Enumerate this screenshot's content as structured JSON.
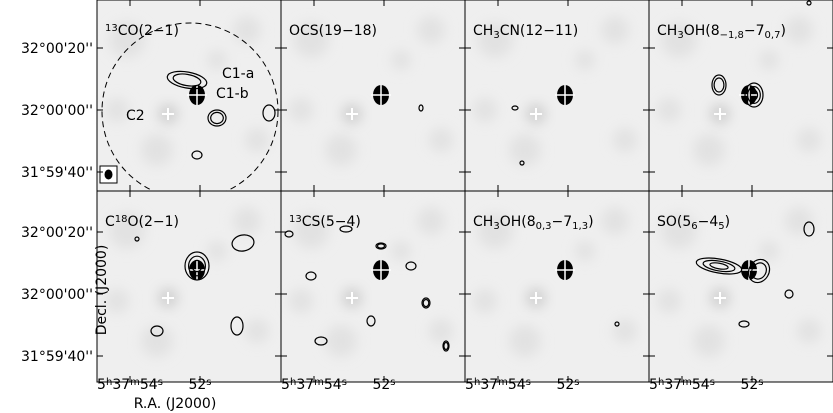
{
  "panels": [
    {
      "label": [
        {
          "t": "13",
          "s": "sup"
        },
        {
          "t": "CO(2−1)"
        }
      ]
    },
    {
      "label": [
        {
          "t": "OCS(19−18)"
        }
      ]
    },
    {
      "label": [
        {
          "t": "CH"
        },
        {
          "t": "3",
          "s": "sub"
        },
        {
          "t": "CN(12−11)"
        }
      ]
    },
    {
      "label": [
        {
          "t": "CH"
        },
        {
          "t": "3",
          "s": "sub"
        },
        {
          "t": "OH(8"
        },
        {
          "t": "−1,8",
          "s": "sub"
        },
        {
          "t": "−7"
        },
        {
          "t": "0,7",
          "s": "sub"
        },
        {
          "t": ")"
        }
      ]
    },
    {
      "label": [
        {
          "t": "C"
        },
        {
          "t": "18",
          "s": "sup"
        },
        {
          "t": "O(2−1)"
        }
      ]
    },
    {
      "label": [
        {
          "t": "13",
          "s": "sup"
        },
        {
          "t": "CS(5−4)"
        }
      ]
    },
    {
      "label": [
        {
          "t": "CH"
        },
        {
          "t": "3",
          "s": "sub"
        },
        {
          "t": "OH(8"
        },
        {
          "t": "0,3",
          "s": "sub"
        },
        {
          "t": "−7"
        },
        {
          "t": "1,3",
          "s": "sub"
        },
        {
          "t": ")"
        }
      ]
    },
    {
      "label": [
        {
          "t": "SO(5"
        },
        {
          "t": "6",
          "s": "sub"
        },
        {
          "t": "−4"
        },
        {
          "t": "5",
          "s": "sub"
        },
        {
          "t": ")"
        }
      ]
    }
  ],
  "annotations": [
    "C1-a",
    "C1-b",
    "C2"
  ],
  "y_tick_labels": [
    "32°00'20''",
    "32°00'00''",
    "31°59'40''",
    "32°00'20''",
    "32°00'00''",
    "31°59'40''"
  ],
  "x_tick_labels": [
    [
      {
        "t": "5"
      },
      {
        "t": "h",
        "s": "sup"
      },
      {
        "t": "37"
      },
      {
        "t": "m",
        "s": "sup"
      },
      {
        "t": "54"
      },
      {
        "t": "s",
        "s": "sup"
      }
    ],
    [
      {
        "t": "52"
      },
      {
        "t": "s",
        "s": "sup"
      }
    ],
    [
      {
        "t": "5"
      },
      {
        "t": "h",
        "s": "sup"
      },
      {
        "t": "37"
      },
      {
        "t": "m",
        "s": "sup"
      },
      {
        "t": "54"
      },
      {
        "t": "s",
        "s": "sup"
      }
    ],
    [
      {
        "t": "52"
      },
      {
        "t": "s",
        "s": "sup"
      }
    ],
    [
      {
        "t": "5"
      },
      {
        "t": "h",
        "s": "sup"
      },
      {
        "t": "37"
      },
      {
        "t": "m",
        "s": "sup"
      },
      {
        "t": "54"
      },
      {
        "t": "s",
        "s": "sup"
      }
    ],
    [
      {
        "t": "52"
      },
      {
        "t": "s",
        "s": "sup"
      }
    ],
    [
      {
        "t": "5"
      },
      {
        "t": "h",
        "s": "sup"
      },
      {
        "t": "37"
      },
      {
        "t": "m",
        "s": "sup"
      },
      {
        "t": "54"
      },
      {
        "t": "s",
        "s": "sup"
      }
    ],
    [
      {
        "t": "52"
      },
      {
        "t": "s",
        "s": "sup"
      }
    ]
  ],
  "x_axis_title": "R.A. (J2000)",
  "y_axis_title": "Decl. (J2000)"
}
